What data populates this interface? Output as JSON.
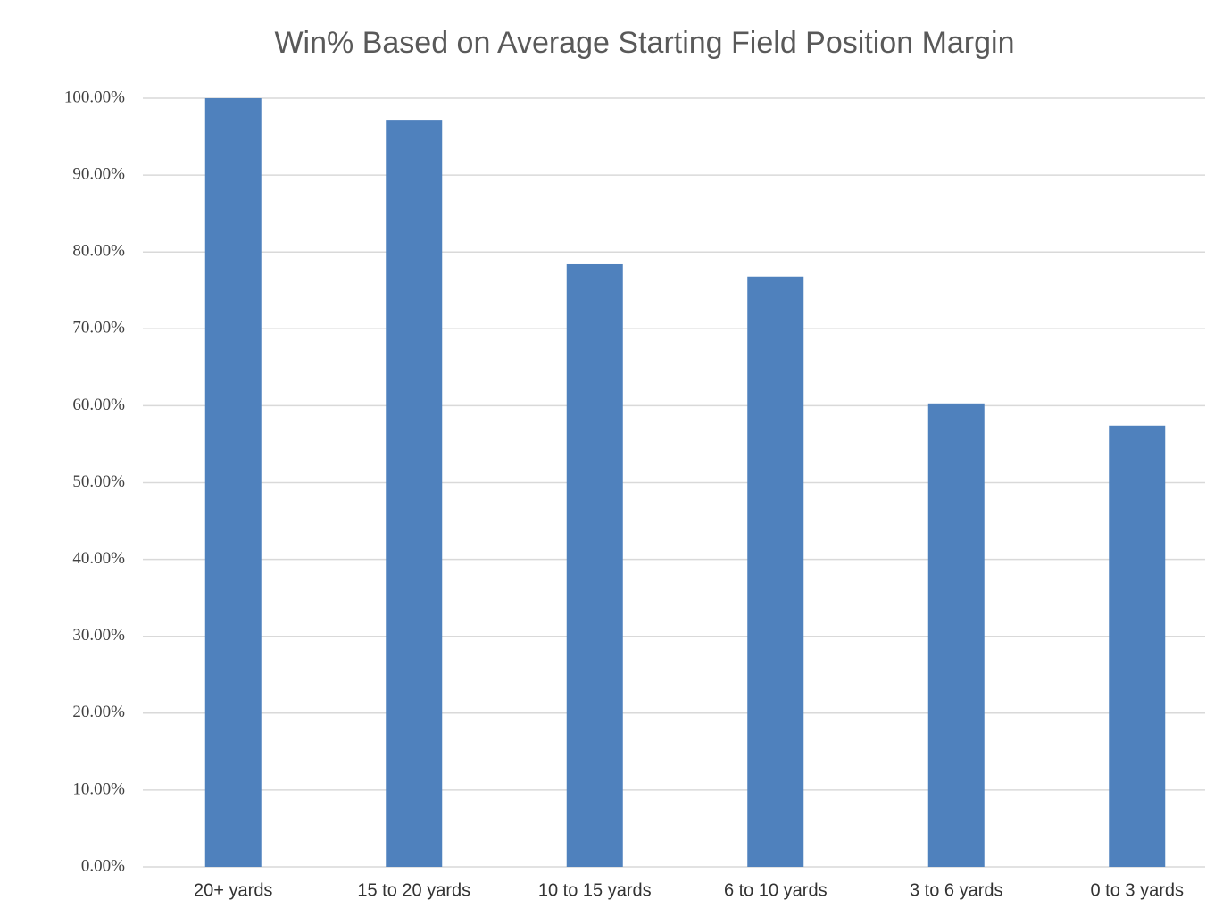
{
  "chart_data": {
    "type": "bar",
    "title": "Win% Based on Average Starting Field Position Margin",
    "categories": [
      "20+ yards",
      "15 to 20 yards",
      "10 to 15 yards",
      "6 to 10 yards",
      "3 to 6 yards",
      "0 to 3 yards"
    ],
    "values": [
      100,
      97.2,
      78.4,
      76.8,
      60.3,
      57.4
    ],
    "color": "#4f81bd",
    "ylim": [
      0,
      100
    ],
    "yticks": [
      {
        "value": 0,
        "label": "0.00%"
      },
      {
        "value": 10,
        "label": "10.00%"
      },
      {
        "value": 20,
        "label": "20.00%"
      },
      {
        "value": 30,
        "label": "30.00%"
      },
      {
        "value": 40,
        "label": "40.00%"
      },
      {
        "value": 50,
        "label": "50.00%"
      },
      {
        "value": 60,
        "label": "60.00%"
      },
      {
        "value": 70,
        "label": "70.00%"
      },
      {
        "value": 80,
        "label": "80.00%"
      },
      {
        "value": 90,
        "label": "90.00%"
      },
      {
        "value": 100,
        "label": "100.00%"
      }
    ],
    "grid": true
  }
}
